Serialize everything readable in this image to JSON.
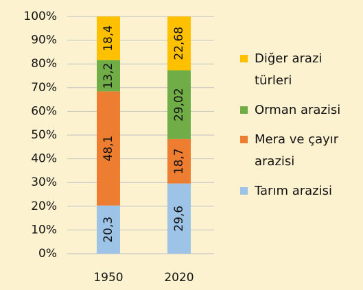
{
  "chart_data": {
    "type": "bar",
    "stacked": true,
    "categories": [
      "1950",
      "2020"
    ],
    "series": [
      {
        "name": "Tarım arazisi",
        "color": "#9dc3e6",
        "values": [
          20.3,
          29.6
        ],
        "value_labels": [
          "20,3",
          "29,6"
        ]
      },
      {
        "name": "Mera ve çayır arazisi",
        "color": "#ed7d31",
        "values": [
          48.1,
          18.7
        ],
        "value_labels": [
          "48,1",
          "18,7"
        ]
      },
      {
        "name": "Orman arazisi",
        "color": "#70ad47",
        "values": [
          13.2,
          29.02
        ],
        "value_labels": [
          "13,2",
          "29,02"
        ]
      },
      {
        "name": "Diğer arazi türleri",
        "color": "#ffc000",
        "values": [
          18.4,
          22.68
        ],
        "value_labels": [
          "18,4",
          "22,68"
        ]
      }
    ],
    "ylim": [
      0,
      100
    ],
    "yticks": [
      {
        "value": 0,
        "label": "0%"
      },
      {
        "value": 10,
        "label": "10%"
      },
      {
        "value": 20,
        "label": "20%"
      },
      {
        "value": 30,
        "label": "30%"
      },
      {
        "value": 40,
        "label": "40%"
      },
      {
        "value": 50,
        "label": "50%"
      },
      {
        "value": 60,
        "label": "60%"
      },
      {
        "value": 70,
        "label": "70%"
      },
      {
        "value": 80,
        "label": "80%"
      },
      {
        "value": 90,
        "label": "90%"
      },
      {
        "value": 100,
        "label": "100%"
      }
    ],
    "grid": true,
    "legend": "right"
  }
}
